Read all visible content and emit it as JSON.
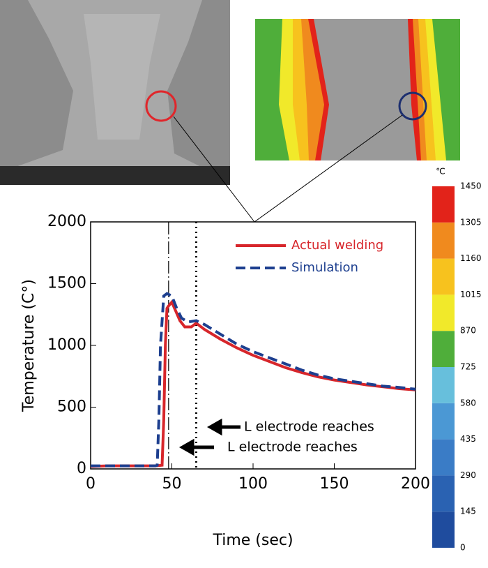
{
  "chart_data": {
    "type": "line",
    "xlabel": "Time (sec)",
    "ylabel": "Temperature (C°)",
    "xlim": [
      0,
      200
    ],
    "xticks": [
      0,
      50,
      100,
      150,
      200
    ],
    "ylim": [
      0,
      2000
    ],
    "yticks": [
      0,
      500,
      1000,
      1500,
      2000
    ],
    "grid": false,
    "legend": "upper right",
    "series": [
      {
        "name": "Actual welding",
        "color": "#d7262b",
        "x": [
          0,
          10,
          20,
          30,
          40,
          44,
          45,
          46,
          47,
          48,
          50,
          52,
          55,
          58,
          62,
          65,
          70,
          80,
          90,
          100,
          110,
          120,
          130,
          140,
          150,
          160,
          170,
          180,
          190,
          200
        ],
        "values": [
          20,
          25,
          25,
          25,
          25,
          30,
          400,
          1000,
          1300,
          1320,
          1350,
          1290,
          1200,
          1150,
          1150,
          1180,
          1130,
          1050,
          980,
          920,
          870,
          820,
          780,
          745,
          720,
          700,
          680,
          665,
          650,
          640
        ]
      },
      {
        "name": "Simulation",
        "color": "#1d3f8f",
        "x": [
          0,
          10,
          20,
          30,
          40,
          41,
          42,
          43,
          45,
          47,
          50,
          53,
          56,
          60,
          65,
          70,
          80,
          90,
          100,
          110,
          120,
          130,
          140,
          150,
          160,
          170,
          180,
          190,
          200
        ],
        "values": [
          25,
          25,
          25,
          25,
          25,
          30,
          400,
          1000,
          1400,
          1420,
          1400,
          1300,
          1220,
          1190,
          1200,
          1170,
          1090,
          1010,
          950,
          900,
          850,
          800,
          760,
          730,
          710,
          690,
          670,
          660,
          645
        ]
      }
    ],
    "vlines": [
      48,
      65
    ],
    "annotations": [
      "L electrode reaches",
      "L electrode reaches"
    ],
    "colorbar": {
      "label": "℃",
      "ticks": [
        0,
        145,
        290,
        435,
        580,
        725,
        870,
        1015,
        1160,
        1305,
        1450
      ],
      "colors": [
        "#1f4c9e",
        "#2a62b2",
        "#3a7cc6",
        "#4b98d4",
        "#67bfdc",
        "#4fae3a",
        "#f1e92a",
        "#f7c21e",
        "#f08a1e",
        "#e2231a"
      ]
    }
  }
}
